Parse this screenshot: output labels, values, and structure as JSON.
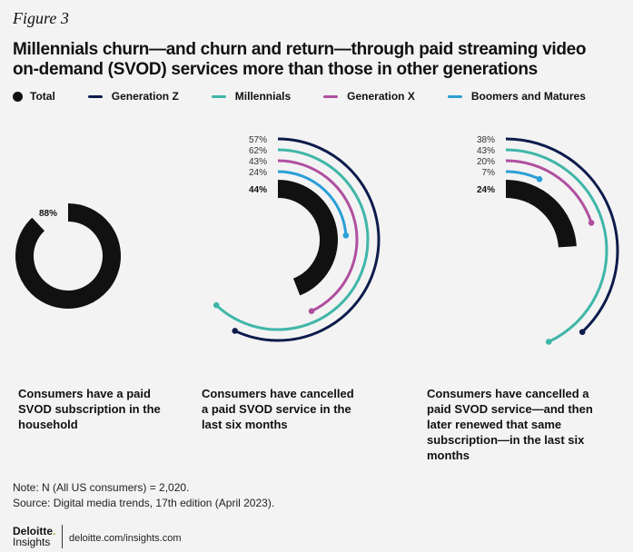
{
  "figure_label": "Figure 3",
  "title": "Millennials churn—and churn and return—through paid streaming video on-demand (SVOD) services more than those in other generations",
  "legend": [
    {
      "name": "Total",
      "color": "#111111",
      "shape": "dot"
    },
    {
      "name": "Generation Z",
      "color": "#0d1b4c",
      "shape": "dash"
    },
    {
      "name": "Millennials",
      "color": "#3fb6a8",
      "shape": "dash"
    },
    {
      "name": "Generation X",
      "color": "#b04f9f",
      "shape": "dash"
    },
    {
      "name": "Boomers and Matures",
      "color": "#2a9fd6",
      "shape": "dash"
    }
  ],
  "chart_data": [
    {
      "type": "radial-bar",
      "caption": "Consumers have a paid SVOD subscription in the household",
      "series": [
        {
          "name": "Total",
          "value": 88,
          "label": "88%"
        }
      ]
    },
    {
      "type": "radial-bar",
      "caption": "Consumers have cancelled a paid SVOD service in the last six months",
      "series": [
        {
          "name": "Generation Z",
          "value": 57,
          "label": "57%"
        },
        {
          "name": "Millennials",
          "value": 62,
          "label": "62%"
        },
        {
          "name": "Generation X",
          "value": 43,
          "label": "43%"
        },
        {
          "name": "Boomers and Matures",
          "value": 24,
          "label": "24%"
        },
        {
          "name": "Total",
          "value": 44,
          "label": "44%"
        }
      ]
    },
    {
      "type": "radial-bar",
      "caption": "Consumers have cancelled a paid SVOD service—and then later renewed that same subscription—in the last six months",
      "series": [
        {
          "name": "Generation Z",
          "value": 38,
          "label": "38%"
        },
        {
          "name": "Millennials",
          "value": 43,
          "label": "43%"
        },
        {
          "name": "Generation X",
          "value": 20,
          "label": "20%"
        },
        {
          "name": "Boomers and Matures",
          "value": 7,
          "label": "7%"
        },
        {
          "name": "Total",
          "value": 24,
          "label": "24%"
        }
      ]
    }
  ],
  "note": "Note: N (All US consumers) = 2,020.",
  "source": "Source: Digital media trends, 17th edition (April 2023).",
  "brand": {
    "name": "Deloitte",
    "dot": ".",
    "sub": "Insights"
  },
  "site": "deloitte.com/insights.com"
}
